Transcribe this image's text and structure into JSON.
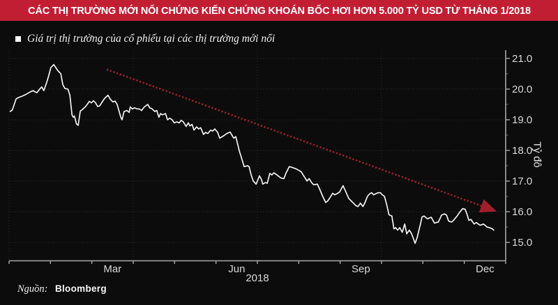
{
  "header": {
    "title": "CÁC THỊ TRƯỜNG MỚI NỔI CHỨNG KIẾN CHỨNG KHOÁN BỐC HƠI HƠN 5.000 TỶ USD TỪ THÁNG 1/2018",
    "bg_color": "#c21e33",
    "text_color": "#ffffff"
  },
  "legend": {
    "marker_icon": "square-icon",
    "marker_color": "#ffffff",
    "label": "Giá trị thị trường của cổ phiếu tại các thị trường mới nổi"
  },
  "footer": {
    "source_label": "Nguồn:",
    "source_value": "Bloomberg"
  },
  "colors": {
    "background": "#0c0c0c",
    "series_line": "#f2f2f2",
    "annotation_arrow": "#a11f2b",
    "gridline": "#313131",
    "axis": "#a8a8a8",
    "tick_label": "#d9d9d9"
  },
  "chart_data": {
    "type": "line",
    "xlabel": "2018",
    "ylabel": "Tỷ đô",
    "x_unit": "decimal_month_of_2018",
    "xlim": [
      0,
      12
    ],
    "ylim": [
      14.4,
      21.27
    ],
    "grid": "dotted",
    "legend_position": "top-left",
    "y_axis_side": "right",
    "y_ticks": [
      {
        "value": 15.0,
        "label": "15.0"
      },
      {
        "value": 16.0,
        "label": "16.0"
      },
      {
        "value": 17.0,
        "label": "17.0"
      },
      {
        "value": 18.0,
        "label": "18.0"
      },
      {
        "value": 19.0,
        "label": "19.0"
      },
      {
        "value": 20.0,
        "label": "20.0"
      },
      {
        "value": 21.0,
        "label": "21.0"
      }
    ],
    "y_minor_tick_step": 0.5,
    "x_ticks": [
      {
        "month": 2.5,
        "label": "Mar"
      },
      {
        "month": 5.5,
        "label": "Jun"
      },
      {
        "month": 8.5,
        "label": "Sep"
      },
      {
        "month": 11.5,
        "label": "Dec"
      }
    ],
    "v_gridline_months": [
      0,
      3,
      6,
      9
    ],
    "annotation_arrow": {
      "style": "dotted",
      "color": "#a11f2b",
      "from": [
        2.36,
        20.64
      ],
      "to": [
        11.7,
        16.05
      ]
    },
    "series": [
      {
        "name": "Giá trị thị trường của cổ phiếu tại các thị trường mới nổi",
        "color": "#f2f2f2",
        "points": [
          [
            0.03,
            19.27
          ],
          [
            0.08,
            19.32
          ],
          [
            0.17,
            19.68
          ],
          [
            0.24,
            19.73
          ],
          [
            0.32,
            19.77
          ],
          [
            0.4,
            19.82
          ],
          [
            0.5,
            19.9
          ],
          [
            0.58,
            19.95
          ],
          [
            0.67,
            19.88
          ],
          [
            0.74,
            20.0
          ],
          [
            0.79,
            20.07
          ],
          [
            0.84,
            19.95
          ],
          [
            0.91,
            20.22
          ],
          [
            0.96,
            20.45
          ],
          [
            1.01,
            20.7
          ],
          [
            1.08,
            20.8
          ],
          [
            1.13,
            20.7
          ],
          [
            1.18,
            20.6
          ],
          [
            1.25,
            20.5
          ],
          [
            1.3,
            20.14
          ],
          [
            1.35,
            20.02
          ],
          [
            1.42,
            20.0
          ],
          [
            1.47,
            19.8
          ],
          [
            1.52,
            19.16
          ],
          [
            1.55,
            19.08
          ],
          [
            1.58,
            19.12
          ],
          [
            1.63,
            18.86
          ],
          [
            1.67,
            18.82
          ],
          [
            1.72,
            19.28
          ],
          [
            1.77,
            19.33
          ],
          [
            1.84,
            19.42
          ],
          [
            1.89,
            19.5
          ],
          [
            1.94,
            19.6
          ],
          [
            1.99,
            19.55
          ],
          [
            2.04,
            19.62
          ],
          [
            2.09,
            19.55
          ],
          [
            2.14,
            19.43
          ],
          [
            2.19,
            19.45
          ],
          [
            2.26,
            19.6
          ],
          [
            2.31,
            19.7
          ],
          [
            2.39,
            19.8
          ],
          [
            2.44,
            19.68
          ],
          [
            2.51,
            19.58
          ],
          [
            2.56,
            19.61
          ],
          [
            2.61,
            19.5
          ],
          [
            2.7,
            19.08
          ],
          [
            2.73,
            19.0
          ],
          [
            2.78,
            19.27
          ],
          [
            2.85,
            19.3
          ],
          [
            2.9,
            19.24
          ],
          [
            2.93,
            19.42
          ],
          [
            2.98,
            19.35
          ],
          [
            3.03,
            19.39
          ],
          [
            3.1,
            19.35
          ],
          [
            3.15,
            19.35
          ],
          [
            3.2,
            19.3
          ],
          [
            3.27,
            19.42
          ],
          [
            3.32,
            19.47
          ],
          [
            3.35,
            19.5
          ],
          [
            3.4,
            19.39
          ],
          [
            3.46,
            19.35
          ],
          [
            3.52,
            19.27
          ],
          [
            3.57,
            19.3
          ],
          [
            3.62,
            19.08
          ],
          [
            3.66,
            19.2
          ],
          [
            3.71,
            19.16
          ],
          [
            3.78,
            19.2
          ],
          [
            3.83,
            19.0
          ],
          [
            3.88,
            19.05
          ],
          [
            3.94,
            19.0
          ],
          [
            3.99,
            18.9
          ],
          [
            4.05,
            18.93
          ],
          [
            4.11,
            18.9
          ],
          [
            4.16,
            18.98
          ],
          [
            4.21,
            18.93
          ],
          [
            4.28,
            18.78
          ],
          [
            4.33,
            18.9
          ],
          [
            4.37,
            18.8
          ],
          [
            4.42,
            18.85
          ],
          [
            4.47,
            18.66
          ],
          [
            4.53,
            18.77
          ],
          [
            4.58,
            18.7
          ],
          [
            4.63,
            18.74
          ],
          [
            4.7,
            18.52
          ],
          [
            4.75,
            18.59
          ],
          [
            4.8,
            18.55
          ],
          [
            4.87,
            18.66
          ],
          [
            4.92,
            18.63
          ],
          [
            4.97,
            18.7
          ],
          [
            5.04,
            18.59
          ],
          [
            5.09,
            18.4
          ],
          [
            5.14,
            18.44
          ],
          [
            5.21,
            18.5
          ],
          [
            5.26,
            18.55
          ],
          [
            5.34,
            18.6
          ],
          [
            5.43,
            18.4
          ],
          [
            5.48,
            18.45
          ],
          [
            5.56,
            18.0
          ],
          [
            5.63,
            17.7
          ],
          [
            5.68,
            17.47
          ],
          [
            5.76,
            17.5
          ],
          [
            5.8,
            17.47
          ],
          [
            5.85,
            17.2
          ],
          [
            5.9,
            17.0
          ],
          [
            5.97,
            16.9
          ],
          [
            6.05,
            17.17
          ],
          [
            6.1,
            17.05
          ],
          [
            6.13,
            16.9
          ],
          [
            6.19,
            16.95
          ],
          [
            6.24,
            16.93
          ],
          [
            6.3,
            17.25
          ],
          [
            6.35,
            17.2
          ],
          [
            6.4,
            17.27
          ],
          [
            6.47,
            17.2
          ],
          [
            6.52,
            17.15
          ],
          [
            6.57,
            17.1
          ],
          [
            6.64,
            17.08
          ],
          [
            6.69,
            17.25
          ],
          [
            6.77,
            17.47
          ],
          [
            6.83,
            17.45
          ],
          [
            6.93,
            17.4
          ],
          [
            6.99,
            17.36
          ],
          [
            7.06,
            17.3
          ],
          [
            7.13,
            17.15
          ],
          [
            7.2,
            17.0
          ],
          [
            7.25,
            17.08
          ],
          [
            7.31,
            16.95
          ],
          [
            7.36,
            16.88
          ],
          [
            7.45,
            16.9
          ],
          [
            7.5,
            16.75
          ],
          [
            7.58,
            16.5
          ],
          [
            7.65,
            16.3
          ],
          [
            7.7,
            16.35
          ],
          [
            7.75,
            16.45
          ],
          [
            7.82,
            16.6
          ],
          [
            7.87,
            16.55
          ],
          [
            7.94,
            16.6
          ],
          [
            7.99,
            16.65
          ],
          [
            8.07,
            16.85
          ],
          [
            8.12,
            16.7
          ],
          [
            8.21,
            16.43
          ],
          [
            8.27,
            16.35
          ],
          [
            8.32,
            16.28
          ],
          [
            8.38,
            16.2
          ],
          [
            8.43,
            16.17
          ],
          [
            8.49,
            16.28
          ],
          [
            8.55,
            16.17
          ],
          [
            8.6,
            16.3
          ],
          [
            8.66,
            16.5
          ],
          [
            8.71,
            16.58
          ],
          [
            8.76,
            16.62
          ],
          [
            8.81,
            16.55
          ],
          [
            8.88,
            16.6
          ],
          [
            8.93,
            16.62
          ],
          [
            8.97,
            16.62
          ],
          [
            9.02,
            16.55
          ],
          [
            9.07,
            16.5
          ],
          [
            9.13,
            16.2
          ],
          [
            9.18,
            15.9
          ],
          [
            9.25,
            15.86
          ],
          [
            9.3,
            15.44
          ],
          [
            9.34,
            15.48
          ],
          [
            9.39,
            15.4
          ],
          [
            9.44,
            15.48
          ],
          [
            9.5,
            15.33
          ],
          [
            9.56,
            15.6
          ],
          [
            9.61,
            15.28
          ],
          [
            9.67,
            15.4
          ],
          [
            9.72,
            15.3
          ],
          [
            9.76,
            15.16
          ],
          [
            9.81,
            14.97
          ],
          [
            9.86,
            15.15
          ],
          [
            9.89,
            15.32
          ],
          [
            9.94,
            15.6
          ],
          [
            9.98,
            15.83
          ],
          [
            10.03,
            15.86
          ],
          [
            10.08,
            15.8
          ],
          [
            10.11,
            15.77
          ],
          [
            10.16,
            15.8
          ],
          [
            10.2,
            15.82
          ],
          [
            10.25,
            15.7
          ],
          [
            10.28,
            15.63
          ],
          [
            10.33,
            15.65
          ],
          [
            10.37,
            15.66
          ],
          [
            10.42,
            15.8
          ],
          [
            10.45,
            15.89
          ],
          [
            10.52,
            15.93
          ],
          [
            10.57,
            15.89
          ],
          [
            10.62,
            15.7
          ],
          [
            10.69,
            15.66
          ],
          [
            10.74,
            15.72
          ],
          [
            10.77,
            15.77
          ],
          [
            10.82,
            15.85
          ],
          [
            10.87,
            15.95
          ],
          [
            10.91,
            16.02
          ],
          [
            10.96,
            16.1
          ],
          [
            11.02,
            16.08
          ],
          [
            11.07,
            15.9
          ],
          [
            11.11,
            15.72
          ],
          [
            11.16,
            15.75
          ],
          [
            11.21,
            15.65
          ],
          [
            11.24,
            15.6
          ],
          [
            11.29,
            15.65
          ],
          [
            11.34,
            15.6
          ],
          [
            11.38,
            15.56
          ],
          [
            11.43,
            15.58
          ],
          [
            11.46,
            15.6
          ],
          [
            11.51,
            15.55
          ],
          [
            11.55,
            15.5
          ],
          [
            11.6,
            15.48
          ],
          [
            11.63,
            15.47
          ],
          [
            11.68,
            15.44
          ],
          [
            11.71,
            15.4
          ]
        ]
      }
    ]
  }
}
